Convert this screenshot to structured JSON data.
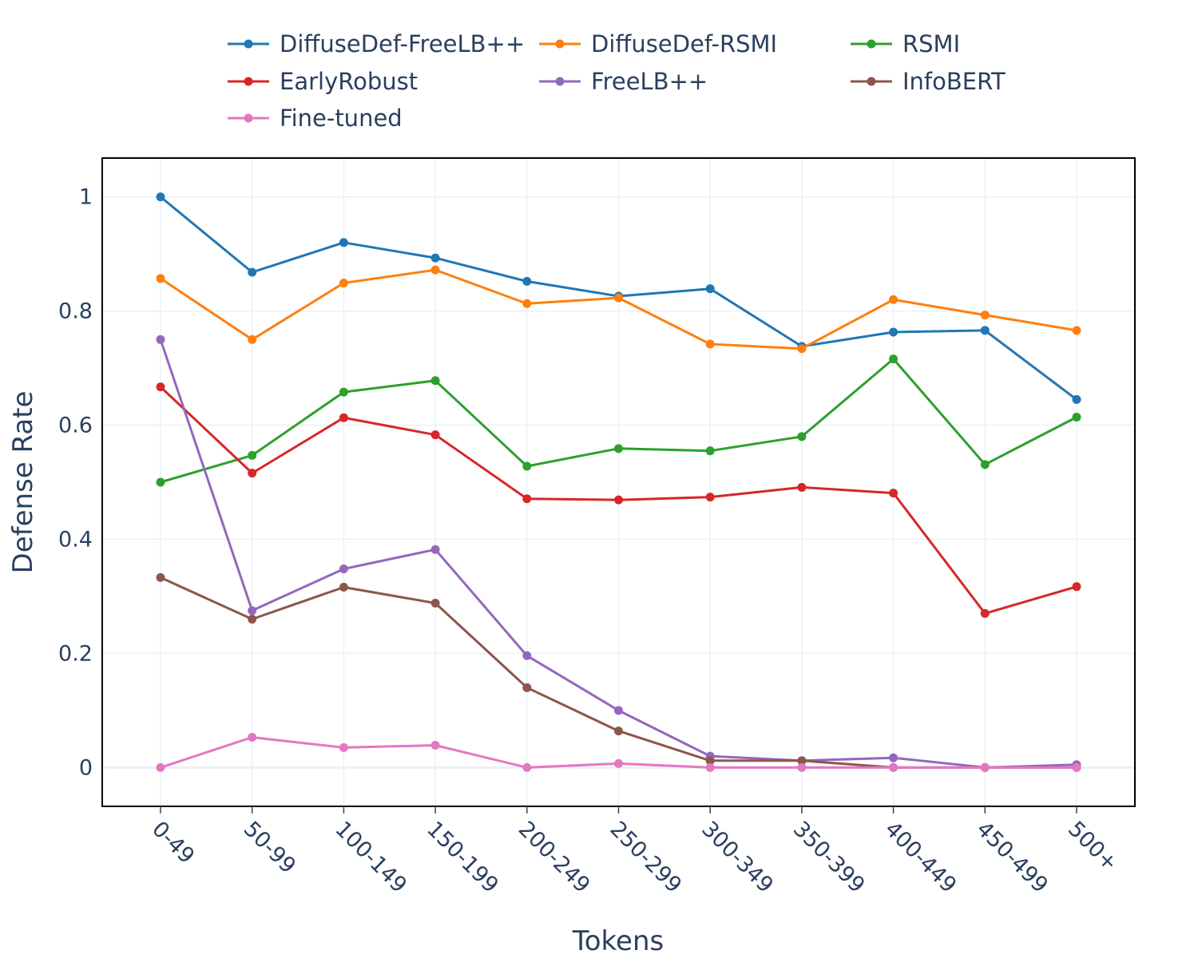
{
  "chart_data": {
    "type": "line",
    "title": "",
    "xlabel": "Tokens",
    "ylabel": "Defense Rate",
    "ylim": [
      -0.068,
      1.068
    ],
    "yticks": [
      0,
      0.2,
      0.4,
      0.6,
      0.8,
      1
    ],
    "ytick_labels": [
      "0",
      "0.2",
      "0.4",
      "0.6",
      "0.8",
      "1"
    ],
    "grid": true,
    "legend_position": "top",
    "categories": [
      "0-49",
      "50-99",
      "100-149",
      "150-199",
      "200-249",
      "250-299",
      "300-349",
      "350-399",
      "400-449",
      "450-499",
      "500+"
    ],
    "series": [
      {
        "name": "DiffuseDef-FreeLB++",
        "color": "#1f77b4",
        "values": [
          1.0,
          0.868,
          0.92,
          0.893,
          0.852,
          0.826,
          0.839,
          0.738,
          0.763,
          0.766,
          0.645
        ]
      },
      {
        "name": "DiffuseDef-RSMI",
        "color": "#ff7f0e",
        "values": [
          0.857,
          0.75,
          0.849,
          0.872,
          0.813,
          0.823,
          0.742,
          0.734,
          0.82,
          0.793,
          0.766
        ]
      },
      {
        "name": "RSMI",
        "color": "#2ca02c",
        "values": [
          0.5,
          0.547,
          0.658,
          0.678,
          0.528,
          0.559,
          0.555,
          0.58,
          0.716,
          0.531,
          0.614
        ]
      },
      {
        "name": "EarlyRobust",
        "color": "#d62728",
        "values": [
          0.667,
          0.516,
          0.613,
          0.583,
          0.471,
          0.469,
          0.474,
          0.491,
          0.481,
          0.27,
          0.317
        ]
      },
      {
        "name": "FreeLB++",
        "color": "#9467bd",
        "values": [
          0.75,
          0.275,
          0.348,
          0.382,
          0.196,
          0.1,
          0.02,
          0.012,
          0.017,
          0.0,
          0.005
        ]
      },
      {
        "name": "InfoBERT",
        "color": "#8c564b",
        "values": [
          0.333,
          0.26,
          0.316,
          0.288,
          0.14,
          0.064,
          0.012,
          0.012,
          0.0,
          0.0,
          0.0
        ]
      },
      {
        "name": "Fine-tuned",
        "color": "#e377c2",
        "values": [
          0.0,
          0.053,
          0.035,
          0.039,
          0.0,
          0.007,
          0.0,
          0.0,
          0.0,
          0.0,
          0.0
        ]
      }
    ]
  }
}
